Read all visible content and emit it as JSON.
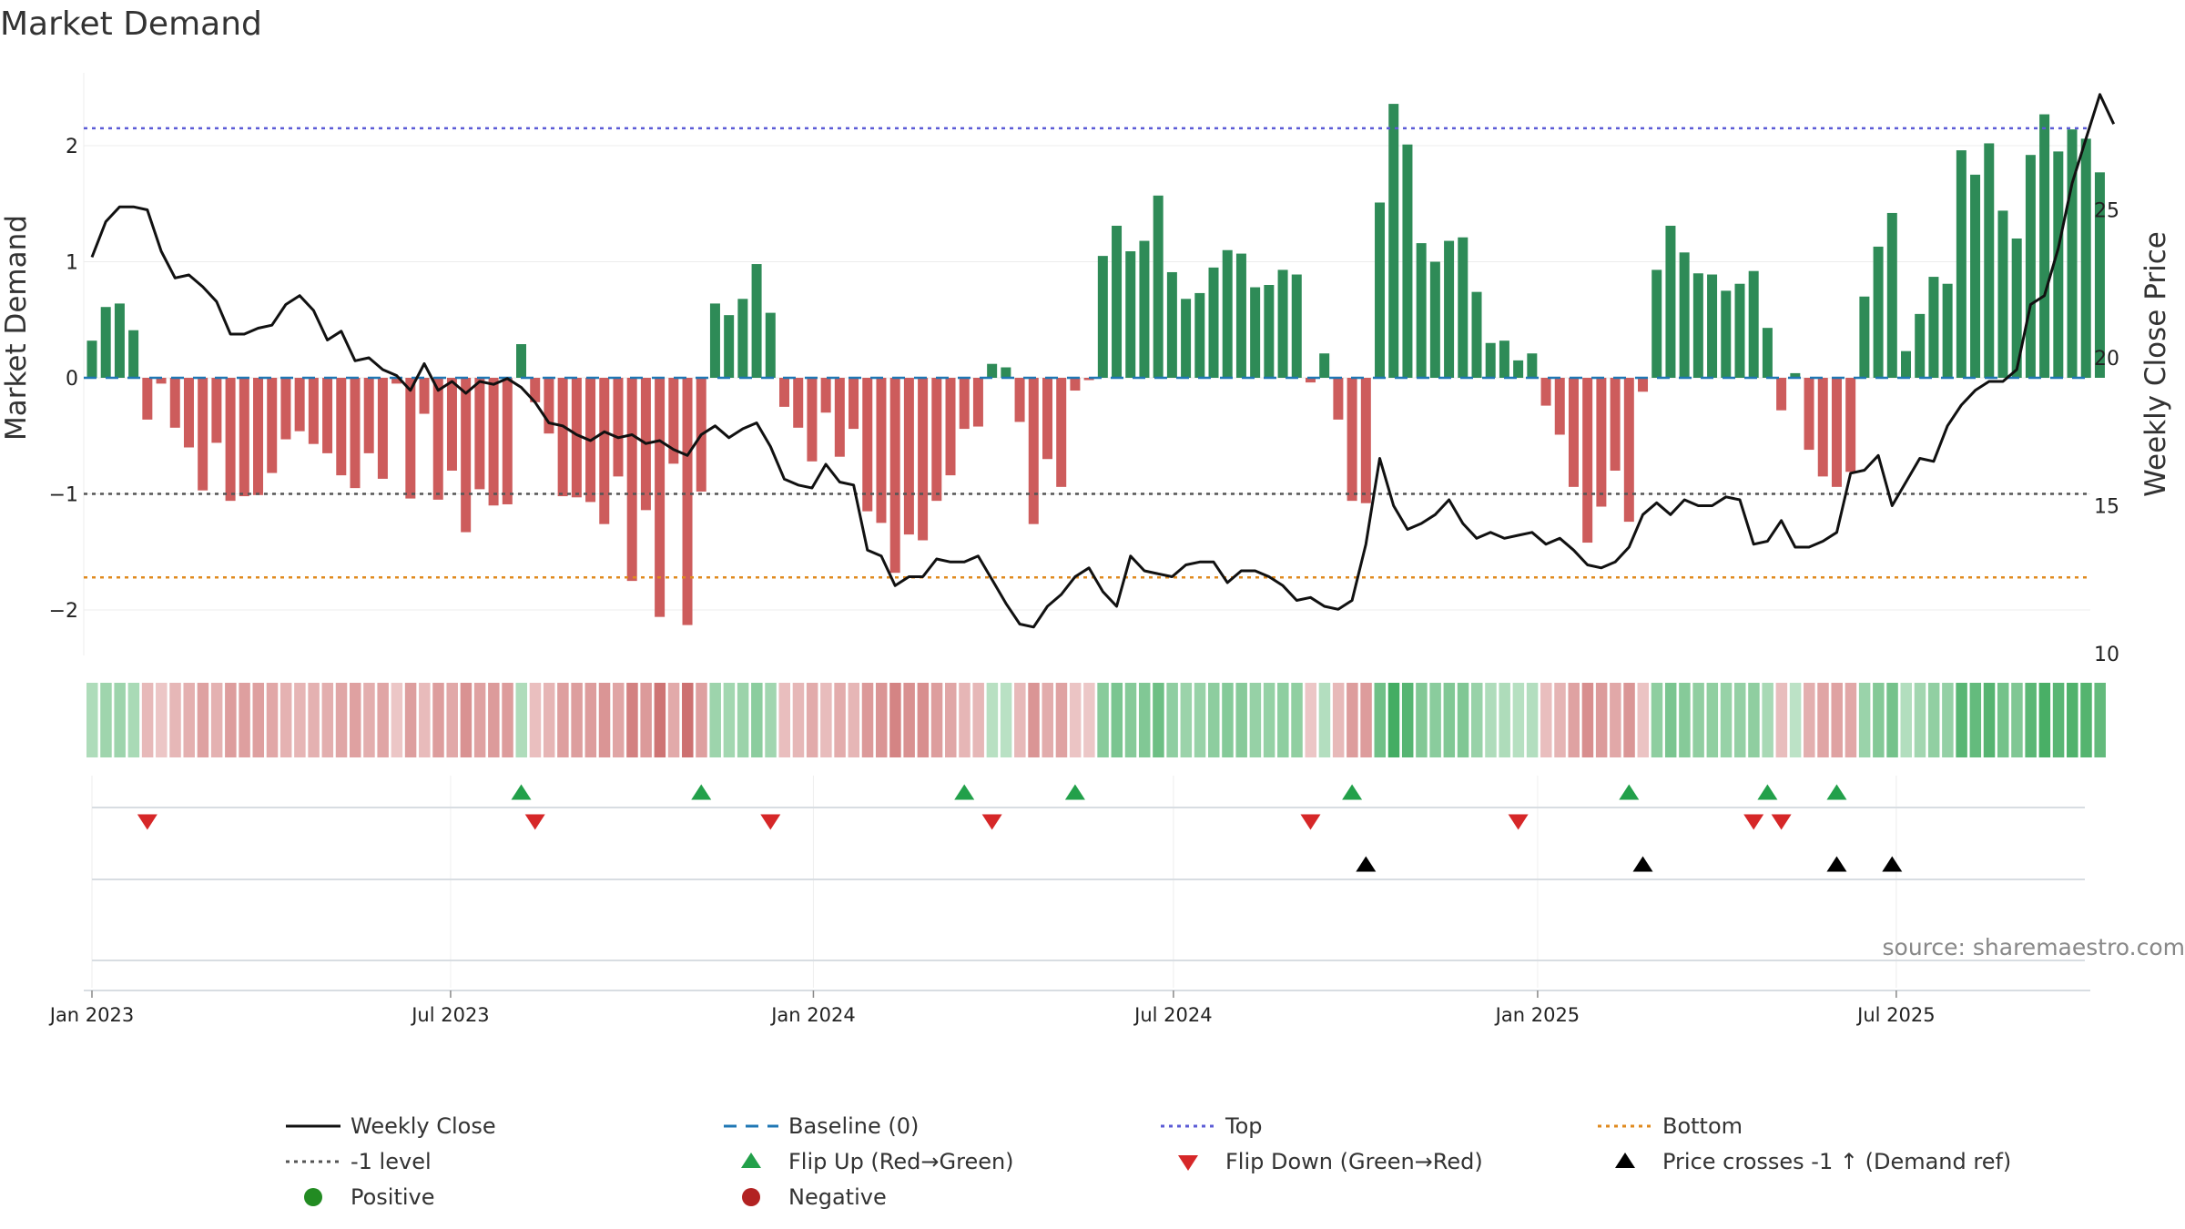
{
  "chart_data": {
    "type": "bar+line",
    "title": "Market Demand",
    "ylabel": "Market Demand",
    "y2label": "Weekly Close Price",
    "ylim": [
      -2.4,
      2.5
    ],
    "y2lim": [
      10,
      29
    ],
    "yticks": [
      -2,
      -1,
      0,
      1,
      2
    ],
    "y2ticks": [
      10,
      15,
      20,
      25
    ],
    "x_start": "2023-01-02",
    "x_step_days": 7,
    "x_ticks": [
      {
        "label": "Jan 2023",
        "index": 0
      },
      {
        "label": "Jul 2023",
        "index": 25.9
      },
      {
        "label": "Jan 2024",
        "index": 52.1
      },
      {
        "label": "Jul 2024",
        "index": 78.1
      },
      {
        "label": "Jan 2025",
        "index": 104.4
      },
      {
        "label": "Jul 2025",
        "index": 130.3
      }
    ],
    "reference_lines": {
      "baseline": 0,
      "top": 2.15,
      "minus_one": -1,
      "bottom": -1.72
    },
    "demand": [
      0.32,
      0.61,
      0.64,
      0.41,
      -0.36,
      -0.05,
      -0.43,
      -0.6,
      -0.97,
      -0.56,
      -1.06,
      -1.02,
      -1.01,
      -0.82,
      -0.53,
      -0.46,
      -0.57,
      -0.65,
      -0.84,
      -0.95,
      -0.65,
      -0.87,
      -0.05,
      -1.04,
      -0.31,
      -1.05,
      -0.8,
      -1.33,
      -0.96,
      -1.1,
      -1.09,
      0.29,
      -0.21,
      -0.48,
      -1.02,
      -1.03,
      -1.07,
      -1.26,
      -0.85,
      -1.75,
      -1.14,
      -2.06,
      -0.74,
      -2.13,
      -0.98,
      0.64,
      0.54,
      0.68,
      0.98,
      0.56,
      -0.25,
      -0.43,
      -0.72,
      -0.3,
      -0.68,
      -0.44,
      -1.15,
      -1.25,
      -1.68,
      -1.35,
      -1.4,
      -1.06,
      -0.84,
      -0.44,
      -0.42,
      0.12,
      0.09,
      -0.38,
      -1.26,
      -0.7,
      -0.94,
      -0.11,
      -0.02,
      1.05,
      1.31,
      1.09,
      1.18,
      1.57,
      0.91,
      0.68,
      0.73,
      0.95,
      1.1,
      1.07,
      0.78,
      0.8,
      0.93,
      0.89,
      -0.04,
      0.21,
      -0.36,
      -1.06,
      -1.08,
      1.51,
      2.36,
      2.01,
      1.16,
      1.0,
      1.18,
      1.21,
      0.74,
      0.3,
      0.32,
      0.15,
      0.21,
      -0.24,
      -0.49,
      -0.94,
      -1.42,
      -1.11,
      -0.8,
      -1.24,
      -0.12,
      0.93,
      1.31,
      1.08,
      0.9,
      0.89,
      0.75,
      0.81,
      0.92,
      0.43,
      -0.28,
      0.04,
      -0.62,
      -0.85,
      -0.94,
      -0.81,
      0.7,
      1.13,
      1.42,
      0.23,
      0.55,
      0.87,
      0.81,
      1.96,
      1.75,
      2.02,
      1.44,
      1.2,
      1.92,
      2.27,
      1.95,
      2.14,
      2.06,
      1.77
    ],
    "close": [
      23.4,
      24.6,
      25.1,
      25.1,
      25.0,
      23.6,
      22.7,
      22.8,
      22.4,
      21.9,
      20.8,
      20.8,
      21.0,
      21.1,
      21.8,
      22.1,
      21.6,
      20.6,
      20.9,
      19.9,
      20.0,
      19.6,
      19.4,
      18.9,
      19.8,
      18.9,
      19.2,
      18.8,
      19.2,
      19.1,
      19.3,
      19.0,
      18.5,
      17.8,
      17.7,
      17.4,
      17.2,
      17.5,
      17.3,
      17.4,
      17.1,
      17.2,
      16.9,
      16.7,
      17.4,
      17.7,
      17.3,
      17.6,
      17.8,
      17.0,
      15.9,
      15.7,
      15.6,
      16.4,
      15.8,
      15.7,
      13.5,
      13.3,
      12.3,
      12.6,
      12.6,
      13.2,
      13.1,
      13.1,
      13.3,
      12.5,
      11.7,
      11.0,
      10.9,
      11.6,
      12.0,
      12.6,
      12.9,
      12.1,
      11.6,
      13.3,
      12.8,
      12.7,
      12.6,
      13.0,
      13.1,
      13.1,
      12.4,
      12.8,
      12.8,
      12.6,
      12.3,
      11.8,
      11.9,
      11.6,
      11.5,
      11.8,
      13.7,
      16.6,
      15.0,
      14.2,
      14.4,
      14.7,
      15.2,
      14.4,
      13.9,
      14.1,
      13.9,
      14.0,
      14.1,
      13.7,
      13.9,
      13.5,
      13.0,
      12.9,
      13.1,
      13.6,
      14.7,
      15.1,
      14.7,
      15.2,
      15.0,
      15.0,
      15.3,
      15.2,
      13.7,
      13.8,
      14.5,
      13.6,
      13.6,
      13.8,
      14.1,
      16.1,
      16.2,
      16.7,
      15.0,
      15.8,
      16.6,
      16.5,
      17.7,
      18.4,
      18.9,
      19.2,
      19.2,
      19.6,
      21.8,
      22.1,
      23.7,
      25.9,
      27.4,
      28.9,
      27.9
    ],
    "flip_up_index": [
      31,
      44,
      63,
      71,
      91,
      111,
      121,
      126
    ],
    "flip_down_index": [
      4,
      32,
      49,
      65,
      88,
      103,
      120,
      122
    ],
    "price_cross_index": [
      92,
      112,
      126,
      130
    ]
  },
  "source": "source: sharemaestro.com",
  "legend": [
    {
      "label": "Weekly Close"
    },
    {
      "label": "Baseline (0)"
    },
    {
      "label": "Top"
    },
    {
      "label": "Bottom"
    },
    {
      "label": "-1 level"
    },
    {
      "label": "Flip Up (Red→Green)"
    },
    {
      "label": "Flip Down (Green→Red)"
    },
    {
      "label": "Price crosses -1 ↑ (Demand ref)"
    },
    {
      "label": "Positive"
    },
    {
      "label": "Negative"
    }
  ],
  "colors": {
    "positive": "#2e8b57",
    "negative": "#cd5c5c",
    "price": "#111111",
    "baseline": "#1f77b4",
    "top": "#5b5bd6",
    "minus_one": "#555555",
    "bottom": "#e08a1e",
    "flip_up": "#22a04a",
    "flip_down": "#d62728",
    "cross": "#000000",
    "legend_positive": "#228b22",
    "legend_negative": "#b22222"
  }
}
